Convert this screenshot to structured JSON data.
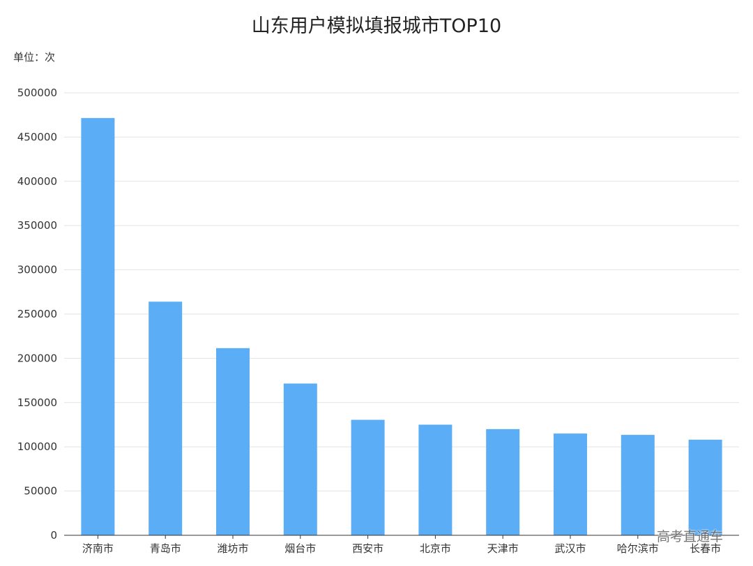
{
  "chart_data": {
    "type": "bar",
    "title": "山东用户模拟填报城市TOP10",
    "unit_label": "单位：次",
    "xlabel": "",
    "ylabel": "",
    "categories": [
      "济南市",
      "青岛市",
      "潍坊市",
      "烟台市",
      "西安市",
      "北京市",
      "天津市",
      "武汉市",
      "哈尔滨市",
      "长春市"
    ],
    "values": [
      471500,
      264000,
      211500,
      171500,
      130500,
      125000,
      120000,
      115000,
      113500,
      108000
    ],
    "ylim": [
      0,
      500000
    ],
    "yticks": [
      "0",
      "50000",
      "100000",
      "150000",
      "200000",
      "250000",
      "300000",
      "350000",
      "400000",
      "450000",
      "500000"
    ],
    "grid": true,
    "legend": "none",
    "bar_color": "#5BAEF5"
  },
  "watermark": "高考直通车"
}
